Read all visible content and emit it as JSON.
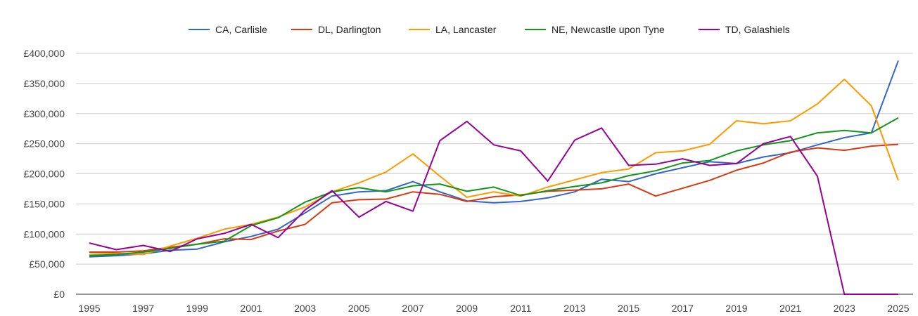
{
  "chart_data": {
    "type": "line",
    "title": "",
    "xlabel": "",
    "ylabel": "",
    "x": [
      1995,
      1996,
      1997,
      1998,
      1999,
      2000,
      2001,
      2002,
      2003,
      2004,
      2005,
      2006,
      2007,
      2008,
      2009,
      2010,
      2011,
      2012,
      2013,
      2014,
      2015,
      2016,
      2017,
      2018,
      2019,
      2020,
      2021,
      2022,
      2023,
      2024,
      2025
    ],
    "x_tick_labels": [
      "1995",
      "1997",
      "1999",
      "2001",
      "2003",
      "2005",
      "2007",
      "2009",
      "2011",
      "2013",
      "2015",
      "2017",
      "2019",
      "2021",
      "2023",
      "2025"
    ],
    "y_tick_labels": [
      "£0",
      "£50,000",
      "£100,000",
      "£150,000",
      "£200,000",
      "£250,000",
      "£300,000",
      "£350,000",
      "£400,000"
    ],
    "ylim": [
      0,
      400000
    ],
    "grid": "horizontal",
    "legend_position": "top",
    "series": [
      {
        "name": "CA, Carlisle",
        "color": "#3366cc",
        "values": [
          62000,
          64000,
          67000,
          73000,
          75000,
          87000,
          96000,
          108000,
          135000,
          163000,
          170000,
          172000,
          187000,
          170000,
          155000,
          152000,
          154000,
          160000,
          170000,
          191000,
          187000,
          200000,
          210000,
          220000,
          217000,
          228000,
          235000,
          248000,
          260000,
          268000,
          388000
        ]
      },
      {
        "name": "DL, Darlington",
        "color": "#dc3912",
        "values": [
          70000,
          70000,
          72000,
          78000,
          83000,
          92000,
          91000,
          105000,
          116000,
          152000,
          157000,
          158000,
          170000,
          166000,
          154000,
          162000,
          165000,
          171000,
          173000,
          175000,
          183000,
          163000,
          176000,
          189000,
          206000,
          218000,
          236000,
          243000,
          239000,
          246000,
          249000
        ]
      },
      {
        "name": "LA, Lancaster",
        "color": "#ff9900",
        "values": [
          66000,
          68000,
          66000,
          80000,
          93000,
          108000,
          116000,
          128000,
          145000,
          170000,
          185000,
          203000,
          233000,
          196000,
          161000,
          170000,
          163000,
          178000,
          190000,
          202000,
          208000,
          235000,
          238000,
          249000,
          288000,
          283000,
          288000,
          316000,
          357000,
          313000,
          189000
        ]
      },
      {
        "name": "NE, Newcastle upon Tyne",
        "color": "#109618",
        "values": [
          64000,
          66000,
          70000,
          76000,
          83000,
          88000,
          114000,
          127000,
          153000,
          170000,
          177000,
          170000,
          180000,
          183000,
          171000,
          178000,
          164000,
          172000,
          179000,
          185000,
          197000,
          205000,
          218000,
          222000,
          238000,
          248000,
          255000,
          268000,
          272000,
          268000,
          293000
        ]
      },
      {
        "name": "TD, Galashiels",
        "color": "#990099",
        "values": [
          85000,
          74000,
          81000,
          71000,
          92000,
          101000,
          116000,
          94000,
          140000,
          172000,
          128000,
          154000,
          138000,
          255000,
          287000,
          248000,
          238000,
          188000,
          256000,
          276000,
          214000,
          216000,
          225000,
          214000,
          217000,
          250000,
          262000,
          196000,
          0,
          0,
          0
        ]
      }
    ]
  }
}
